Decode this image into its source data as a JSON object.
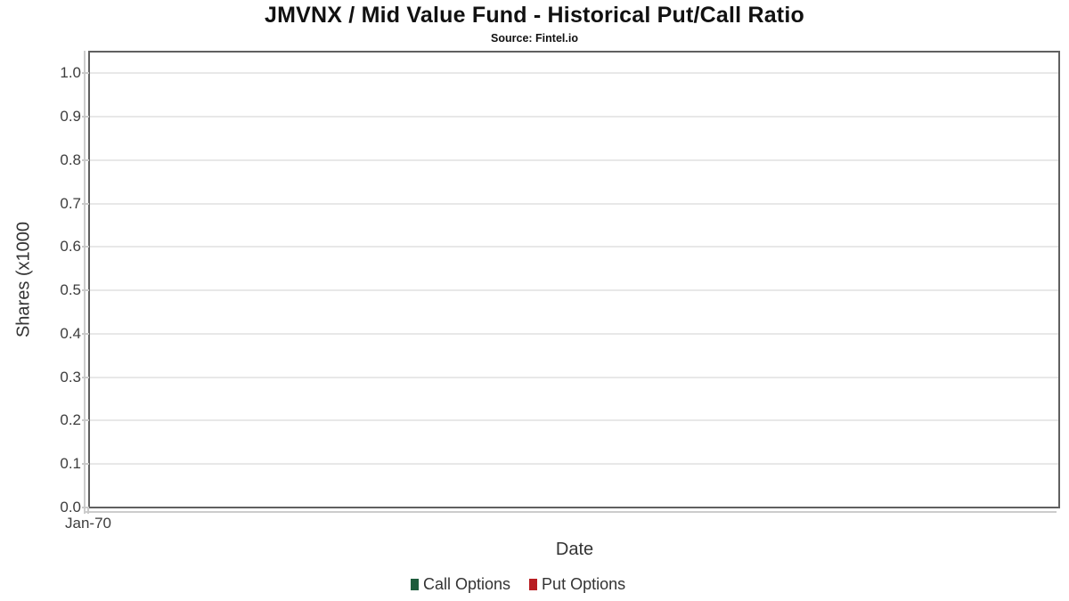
{
  "chart_data": {
    "type": "line",
    "title": "JMVNX / Mid Value Fund - Historical Put/Call Ratio",
    "subtitle": "Source: Fintel.io",
    "xlabel": "Date",
    "ylabel": "Shares (x1000",
    "x_tick_labels": [
      "Jan-70"
    ],
    "y_ticks": [
      0.0,
      0.1,
      0.2,
      0.3,
      0.4,
      0.5,
      0.6,
      0.7,
      0.8,
      0.9,
      1.0
    ],
    "ylim": [
      0.0,
      1.05
    ],
    "grid": true,
    "legend_position": "bottom",
    "series": [
      {
        "name": "Call Options",
        "color": "#1e5c3c",
        "x": [],
        "values": []
      },
      {
        "name": "Put Options",
        "color": "#b81d22",
        "x": [],
        "values": []
      }
    ]
  },
  "colors": {
    "panel_border": "#606060",
    "gridline": "#e8e8e8",
    "axis_line": "#cccccc",
    "tick_text": "#3d3d3d",
    "axis_title_text": "#333333",
    "title_text": "#111111"
  }
}
